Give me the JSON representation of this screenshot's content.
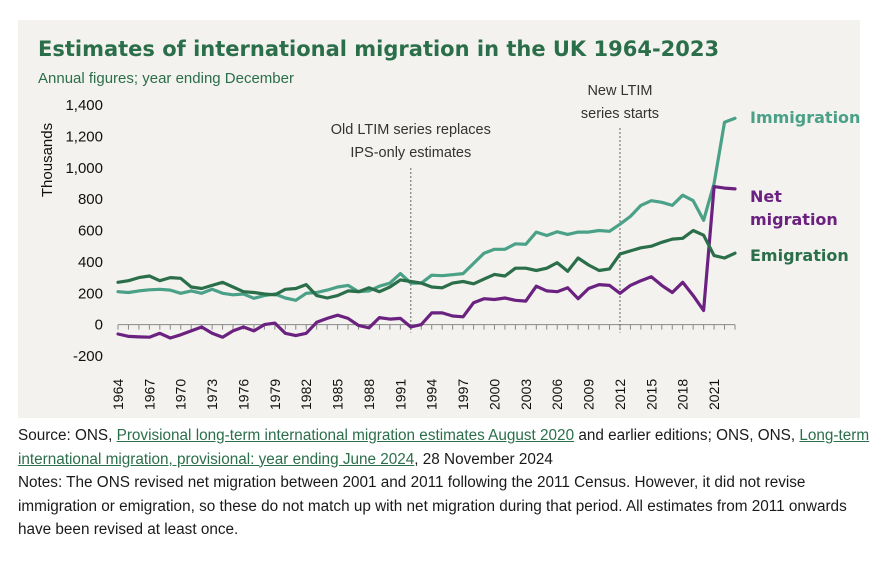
{
  "chart_data": {
    "type": "line",
    "title": "Estimates of international migration in the UK 1964-2023",
    "subtitle": "Annual figures; year ending December",
    "ylabel": "Thousands",
    "xlabel": "",
    "ylim": [
      -200,
      1400
    ],
    "yticks": [
      "1,400",
      "1,200",
      "1,000",
      "800",
      "600",
      "400",
      "200",
      "0",
      "-200"
    ],
    "ytick_values": [
      1400,
      1200,
      1000,
      800,
      600,
      400,
      200,
      0,
      -200
    ],
    "xticks": [
      1964,
      1967,
      1970,
      1973,
      1976,
      1979,
      1982,
      1985,
      1988,
      1991,
      1994,
      1997,
      2000,
      2003,
      2006,
      2009,
      2012,
      2015,
      2018,
      2021
    ],
    "x": [
      1964,
      1965,
      1966,
      1967,
      1968,
      1969,
      1970,
      1971,
      1972,
      1973,
      1974,
      1975,
      1976,
      1977,
      1978,
      1979,
      1980,
      1981,
      1982,
      1983,
      1984,
      1985,
      1986,
      1987,
      1988,
      1989,
      1990,
      1991,
      1992,
      1993,
      1994,
      1995,
      1996,
      1997,
      1998,
      1999,
      2000,
      2001,
      2002,
      2003,
      2004,
      2005,
      2006,
      2007,
      2008,
      2009,
      2010,
      2011,
      2012,
      2013,
      2014,
      2015,
      2016,
      2017,
      2018,
      2019,
      2020,
      2021,
      2022,
      2023
    ],
    "series": [
      {
        "name": "Immigration",
        "color": "#4aa187",
        "values": [
          210,
          205,
          215,
          222,
          225,
          220,
          200,
          215,
          200,
          225,
          200,
          190,
          195,
          168,
          185,
          195,
          170,
          155,
          200,
          205,
          220,
          240,
          250,
          210,
          215,
          245,
          265,
          325,
          265,
          265,
          315,
          312,
          318,
          325,
          390,
          455,
          480,
          480,
          515,
          512,
          590,
          568,
          592,
          575,
          590,
          590,
          600,
          595,
          640,
          690,
          760,
          790,
          780,
          760,
          825,
          790,
          665,
          900,
          1290,
          1315
        ]
      },
      {
        "name": "Net migration",
        "color": "#6b2180",
        "values": [
          -60,
          -75,
          -78,
          -80,
          -55,
          -85,
          -65,
          -40,
          -15,
          -55,
          -80,
          -40,
          -15,
          -40,
          0,
          10,
          -55,
          -70,
          -55,
          15,
          40,
          60,
          40,
          -5,
          -20,
          45,
          35,
          40,
          -15,
          0,
          75,
          75,
          55,
          50,
          140,
          165,
          160,
          170,
          155,
          150,
          245,
          215,
          210,
          235,
          165,
          230,
          255,
          250,
          200,
          250,
          280,
          305,
          250,
          205,
          270,
          185,
          90,
          880,
          870,
          865
        ]
      },
      {
        "name": "Emigration",
        "color": "#2b6e4a",
        "values": [
          270,
          280,
          300,
          310,
          280,
          300,
          295,
          240,
          230,
          250,
          270,
          240,
          210,
          205,
          195,
          190,
          225,
          230,
          255,
          185,
          170,
          185,
          215,
          210,
          235,
          210,
          240,
          285,
          275,
          265,
          240,
          235,
          265,
          275,
          260,
          290,
          320,
          310,
          360,
          360,
          345,
          360,
          395,
          340,
          425,
          380,
          345,
          355,
          450,
          470,
          490,
          500,
          525,
          545,
          550,
          600,
          570,
          440,
          425,
          455
        ]
      }
    ],
    "annotations": [
      {
        "lines": [
          "Old LTIM series replaces",
          "IPS-only estimates"
        ],
        "x": 1992
      },
      {
        "lines": [
          "New LTIM",
          "series starts"
        ],
        "x": 2012
      }
    ],
    "series_labels": [
      {
        "lines": [
          "Immigration"
        ],
        "color": "#4aa187"
      },
      {
        "lines": [
          "Net",
          "migration"
        ],
        "color": "#6b2180"
      },
      {
        "lines": [
          "Emigration"
        ],
        "color": "#2b6e4a"
      }
    ],
    "grid": false,
    "legend": "inline-right"
  },
  "notes": {
    "source_prefix": "Source: ONS, ",
    "link1": "Provisional long-term international migration estimates August 2020",
    "source_mid": " and earlier editions; ONS, ONS, ",
    "link2": "Long-term international migration, provisional: year ending June 2024",
    "source_suffix": ", 28 November 2024",
    "notes_text": "Notes: The ONS revised net migration between 2001 and 2011 following the 2011 Census. However, it did not revise immigration or emigration, so these do not match up with net migration during that period. All estimates from 2011 onwards have been revised at least once."
  }
}
